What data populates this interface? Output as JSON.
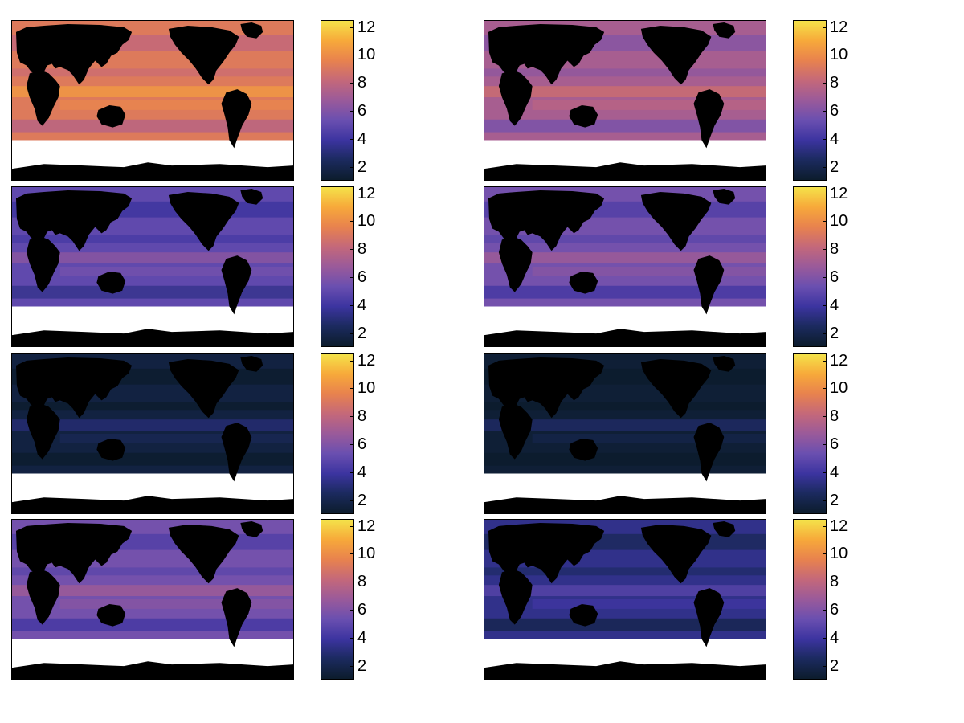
{
  "colorbar": {
    "ticks": [
      "2",
      "4",
      "6",
      "8",
      "10",
      "12"
    ],
    "tick_values": [
      2,
      4,
      6,
      8,
      10,
      12
    ],
    "vmin": 1,
    "vmax": 12.5,
    "colors": [
      "#0c1c2c",
      "#1b2a5e",
      "#3c34a0",
      "#6a4fb0",
      "#9a5a9a",
      "#c4687a",
      "#e8824e",
      "#f7a93a",
      "#f4e24a"
    ]
  },
  "land_color": "#000000",
  "ice_color": "#ffffff",
  "panels": [
    {
      "id": "r1c1",
      "level": 9.2
    },
    {
      "id": "r1c2",
      "level": 7.2
    },
    {
      "id": "r2c1",
      "level": 5.0
    },
    {
      "id": "r2c2",
      "level": 5.6
    },
    {
      "id": "r3c1",
      "level": 1.6
    },
    {
      "id": "r3c2",
      "level": 1.3
    },
    {
      "id": "r4c1",
      "level": 5.6
    },
    {
      "id": "r4c2",
      "level": 3.4
    }
  ]
}
